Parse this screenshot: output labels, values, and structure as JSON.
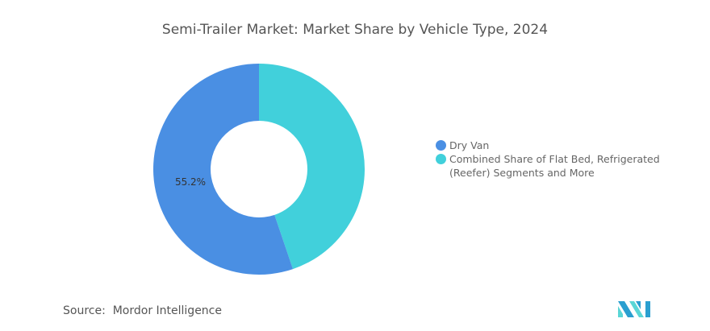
{
  "chart_data": {
    "type": "pie",
    "title": "Semi-Trailer Market: Market Share by Vehicle Type, 2024",
    "categories": [
      "Dry Van",
      "Combined Share of Flat Bed, Refrigerated (Reefer) Segments and More"
    ],
    "values": [
      55.2,
      44.8
    ],
    "data_labels": [
      "55.2%",
      ""
    ],
    "colors": [
      "#4a8fe3",
      "#41d0db"
    ],
    "donut": true,
    "legend_position": "right"
  },
  "source": {
    "label": "Source:",
    "value": "Mordor Intelligence"
  },
  "logo": {
    "colors": [
      "#2a9fd0",
      "#5ad6d6"
    ]
  }
}
